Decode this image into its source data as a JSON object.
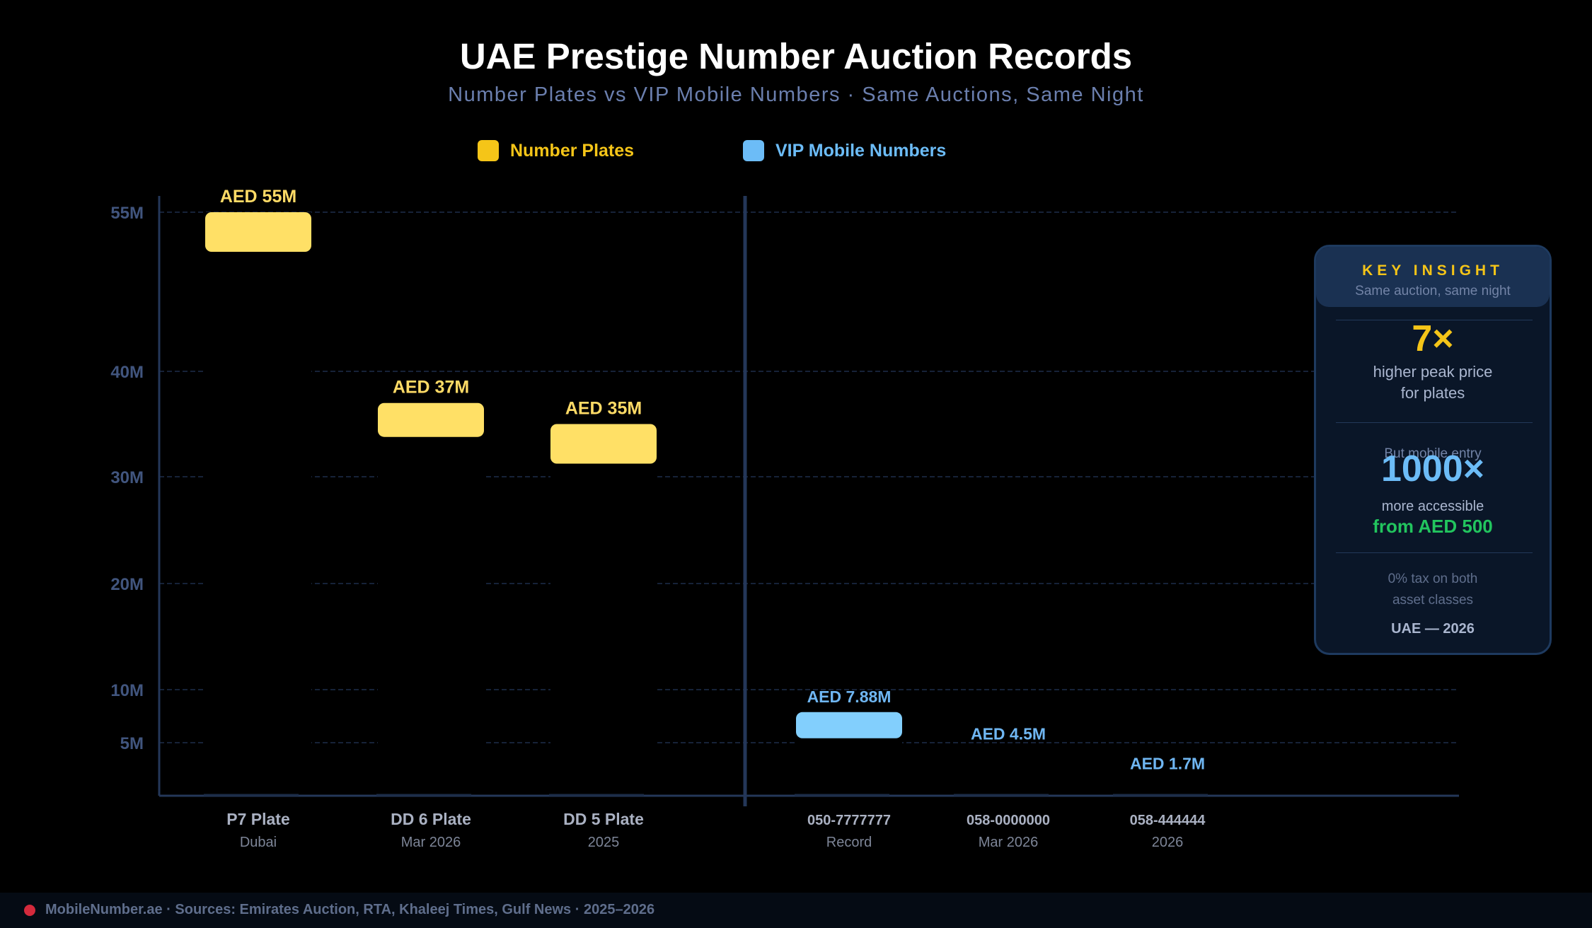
{
  "chart_data": {
    "type": "bar",
    "title": "UAE Prestige Number Auction Records",
    "subtitle": "Number Plates vs VIP Mobile Numbers  ·  Same Auctions, Same Night",
    "y_ticks": [
      "55M",
      "40M",
      "30M",
      "20M",
      "10M",
      "5M"
    ],
    "y_tick_values": [
      55,
      40,
      30,
      20,
      10,
      5
    ],
    "ylim": [
      0,
      55
    ],
    "unit": "AED millions",
    "grid": true,
    "legend_position": "top",
    "series": [
      {
        "name": "Number Plates",
        "color": "#f5c518",
        "bar_color": "#ffe066",
        "label_color": "#ffdb66",
        "categories": [
          {
            "label": "P7 Plate",
            "sublabel": "Dubai",
            "value": 55,
            "value_label": "AED 55M"
          },
          {
            "label": "DD 6 Plate",
            "sublabel": "Mar 2026",
            "value": 37,
            "value_label": "AED 37M"
          },
          {
            "label": "DD 5 Plate",
            "sublabel": "2025",
            "value": 35,
            "value_label": "AED 35M"
          }
        ]
      },
      {
        "name": "VIP Mobile Numbers",
        "color": "#6cbcf7",
        "bar_color": "#82cffd",
        "label_color": "#6fb6f2",
        "categories": [
          {
            "label": "050-7777777",
            "sublabel": "Record",
            "value": 7.88,
            "value_label": "AED 7.88M"
          },
          {
            "label": "058-0000000",
            "sublabel": "Mar 2026",
            "value": 4.5,
            "value_label": "AED 4.5M"
          },
          {
            "label": "058-444444",
            "sublabel": "2026",
            "value": 1.7,
            "value_label": "AED 1.7M"
          }
        ]
      }
    ]
  },
  "insight": {
    "heading": "KEY INSIGHT",
    "subheading": "Same auction, same night",
    "stat1": "7×",
    "stat1_line1": "higher peak price",
    "stat1_line2": "for plates",
    "stat2_pre": "But mobile entry",
    "stat2": "1000×",
    "stat2_line1": "more accessible",
    "stat2_line2": "from AED 500",
    "tax_line1": "0% tax on both",
    "tax_line2": "asset classes",
    "footer": "UAE — 2026"
  },
  "colors": {
    "plates": "#f5c518",
    "mobile": "#6cbcf7",
    "accent_green": "#22c55e",
    "grid": "#1e2d4a",
    "axis_label": "#41557e"
  },
  "footer": {
    "brand": "MobileNumber.ae",
    "sources": "Sources: Emirates Auction, RTA, Khaleej Times, Gulf News",
    "years": "2025–2026"
  }
}
